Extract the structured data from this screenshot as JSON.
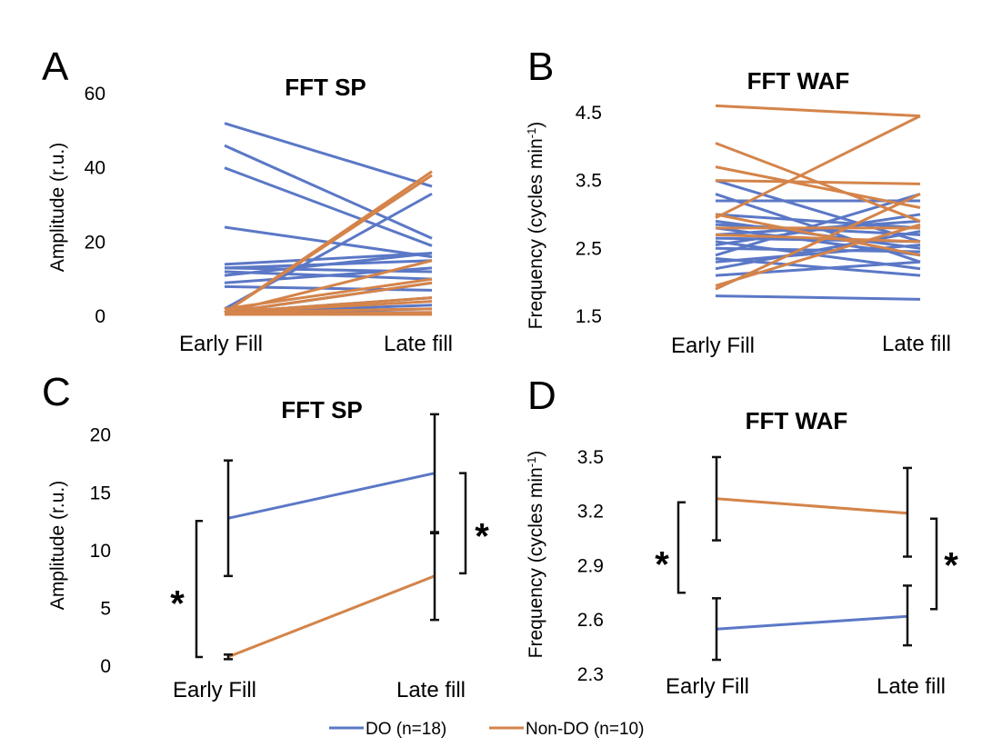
{
  "colors": {
    "do": "#5b78c6",
    "nondo": "#d4844a",
    "bar": "#111111"
  },
  "legend": {
    "do_label": "DO (n=18)",
    "nondo_label": "Non-DO (n=10)"
  },
  "chart_data": [
    {
      "panel": "A",
      "type": "line",
      "title": "FFT SP",
      "ylabel": "Amplitude (r.u.)",
      "ylim": [
        0,
        60
      ],
      "yticks": [
        "0",
        "20",
        "40",
        "60"
      ],
      "categories": [
        "Early Fill",
        "Late fill"
      ],
      "series": [
        {
          "group": "do",
          "values": [
            [
              52,
              35
            ],
            [
              46,
              21
            ],
            [
              40,
              19
            ],
            [
              24,
              16
            ],
            [
              14,
              17
            ],
            [
              13,
              15
            ],
            [
              13,
              12
            ],
            [
              12,
              10
            ],
            [
              11,
              17
            ],
            [
              9,
              13
            ],
            [
              8,
              7
            ],
            [
              2,
              33
            ],
            [
              1,
              9
            ],
            [
              1,
              5
            ],
            [
              1,
              3
            ],
            [
              1,
              2
            ],
            [
              1,
              1
            ],
            [
              0.5,
              0.5
            ]
          ]
        },
        {
          "group": "nondo",
          "values": [
            [
              1,
              39
            ],
            [
              1,
              38
            ],
            [
              1,
              15
            ],
            [
              2,
              10
            ],
            [
              1,
              9
            ],
            [
              1,
              5
            ],
            [
              1,
              4
            ],
            [
              1,
              2
            ],
            [
              0.5,
              1
            ],
            [
              0.5,
              0.5
            ]
          ]
        }
      ]
    },
    {
      "panel": "B",
      "type": "line",
      "title": "FFT WAF",
      "ylabel": "Frequency (cycles min",
      "ylabel_sup": "-1",
      "ylabel_end": ")",
      "ylim": [
        1.5,
        4.9
      ],
      "yticks": [
        "1.5",
        "2.5",
        "3.5",
        "4.5"
      ],
      "categories": [
        "Early Fill",
        "Late fill"
      ],
      "series": [
        {
          "group": "do",
          "values": [
            [
              3.5,
              2.6
            ],
            [
              3.3,
              2.3
            ],
            [
              3.2,
              3.2
            ],
            [
              3.0,
              2.8
            ],
            [
              2.9,
              2.5
            ],
            [
              2.85,
              2.7
            ],
            [
              2.8,
              2.4
            ],
            [
              2.7,
              2.9
            ],
            [
              2.65,
              2.6
            ],
            [
              2.6,
              2.2
            ],
            [
              2.55,
              3.0
            ],
            [
              2.5,
              2.45
            ],
            [
              2.4,
              3.3
            ],
            [
              2.35,
              2.1
            ],
            [
              2.3,
              2.55
            ],
            [
              2.2,
              2.75
            ],
            [
              2.1,
              2.3
            ],
            [
              1.8,
              1.75
            ]
          ]
        },
        {
          "group": "nondo",
          "values": [
            [
              4.6,
              4.45
            ],
            [
              4.05,
              2.9
            ],
            [
              3.7,
              3.1
            ],
            [
              3.5,
              3.45
            ],
            [
              3.0,
              2.4
            ],
            [
              2.95,
              4.45
            ],
            [
              2.8,
              2.8
            ],
            [
              2.7,
              2.6
            ],
            [
              1.95,
              2.85
            ],
            [
              1.9,
              3.3
            ]
          ]
        }
      ]
    },
    {
      "panel": "C",
      "type": "line",
      "title": "FFT SP",
      "ylabel": "Amplitude (r.u.)",
      "ylim": [
        0,
        21
      ],
      "yticks": [
        "0",
        "5",
        "10",
        "15",
        "20"
      ],
      "categories": [
        "Early Fill",
        "Late fill"
      ],
      "series": [
        {
          "group": "do",
          "values": [
            12.8,
            16.7
          ],
          "err_low": [
            7.8,
            11.5
          ],
          "err_high": [
            17.8,
            21.8
          ]
        },
        {
          "group": "nondo",
          "values": [
            0.8,
            7.8
          ],
          "err_low": [
            0.6,
            4.0
          ],
          "err_high": [
            1.0,
            11.6
          ]
        }
      ],
      "sig_star": "*"
    },
    {
      "panel": "D",
      "type": "line",
      "title": "FFT WAF",
      "ylabel": "Frequency (cycles min",
      "ylabel_sup": "-1",
      "ylabel_end": ")",
      "ylim": [
        2.3,
        3.55
      ],
      "yticks": [
        "2.3",
        "2.6",
        "2.9",
        "3.2",
        "3.5"
      ],
      "categories": [
        "Early Fill",
        "Late fill"
      ],
      "series": [
        {
          "group": "do",
          "values": [
            2.55,
            2.62
          ],
          "err_low": [
            2.38,
            2.46
          ],
          "err_high": [
            2.72,
            2.79
          ]
        },
        {
          "group": "nondo",
          "values": [
            3.27,
            3.19
          ],
          "err_low": [
            3.04,
            2.95
          ],
          "err_high": [
            3.5,
            3.44
          ]
        }
      ],
      "sig_star": "*"
    }
  ]
}
